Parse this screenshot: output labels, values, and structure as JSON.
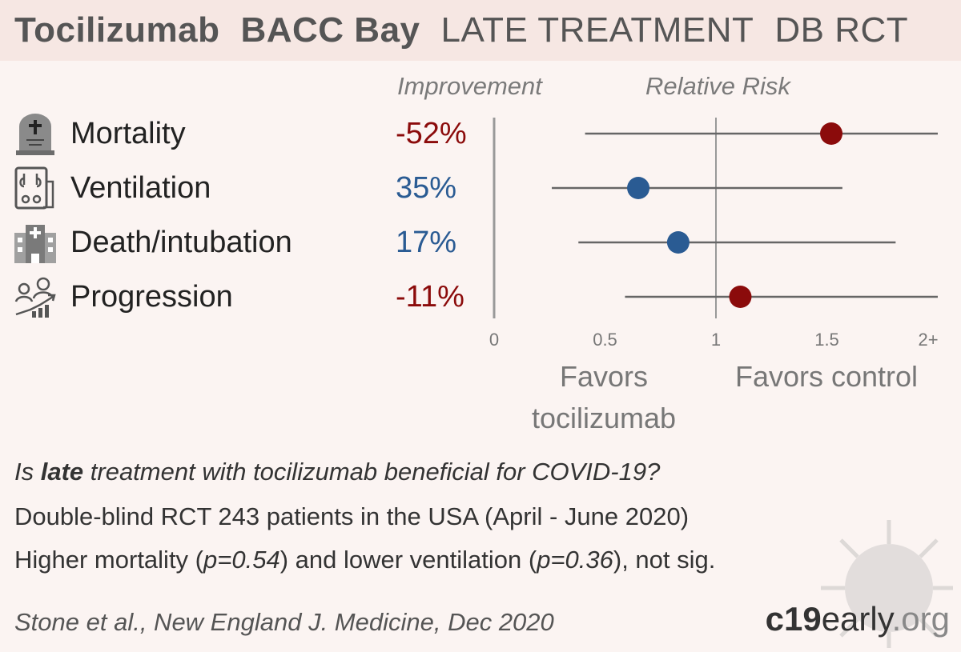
{
  "title": {
    "drug": "Tocilizumab",
    "trial": "BACC Bay",
    "stage": "LATE TREATMENT",
    "design": "DB RCT"
  },
  "headers": {
    "improvement": "Improvement",
    "relative_risk": "Relative Risk"
  },
  "rows": [
    {
      "label": "Mortality",
      "improvement": "-52%",
      "icon": "tombstone-icon"
    },
    {
      "label": "Ventilation",
      "improvement": "35%",
      "icon": "ventilator-icon"
    },
    {
      "label": "Death/intubation",
      "improvement": "17%",
      "icon": "hospital-icon"
    },
    {
      "label": "Progression",
      "improvement": "-11%",
      "icon": "patients-progression-icon"
    }
  ],
  "chart_data": {
    "type": "scatter",
    "xlabel": "Relative Risk",
    "xlim": [
      0,
      2
    ],
    "x_ticks": [
      "0",
      "0.5",
      "1",
      "1.5",
      "2+"
    ],
    "reference_line": 1,
    "series": [
      {
        "name": "Mortality",
        "rr": 1.52,
        "ci": [
          0.41,
          2.0
        ],
        "color": "#8b0b0b"
      },
      {
        "name": "Ventilation",
        "rr": 0.65,
        "ci": [
          0.26,
          1.57
        ],
        "color": "#2a5b93"
      },
      {
        "name": "Death/intubation",
        "rr": 0.83,
        "ci": [
          0.38,
          1.81
        ],
        "color": "#2a5b93"
      },
      {
        "name": "Progression",
        "rr": 1.11,
        "ci": [
          0.59,
          2.0
        ],
        "color": "#8b0b0b"
      }
    ],
    "favors_left": "Favors tocilizumab",
    "favors_right": "Favors control"
  },
  "colors": {
    "harm": "#8b0b0b",
    "benefit": "#2a5b93",
    "title_bg": "#f6e7e3",
    "background": "#fbf4f2"
  },
  "footer": {
    "question_pre": "Is ",
    "question_bold": "late",
    "question_post": " treatment with tocilizumab beneficial for COVID-19?",
    "design": "Double-blind RCT 243 patients in the USA (April - June 2020)",
    "result_1": "Higher mortality (",
    "result_p1": "p=0.54",
    "result_2": ") and lower ventilation (",
    "result_p2": "p=0.36",
    "result_3": "), not sig.",
    "citation": "Stone et al., New England J. Medicine, Dec 2020",
    "brand_bold": "c19",
    "brand_rest": "early",
    "brand_tld": ".org"
  }
}
